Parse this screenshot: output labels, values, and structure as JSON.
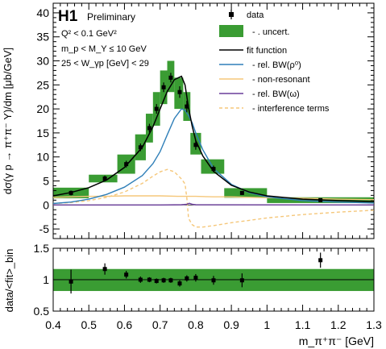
{
  "chart_data": [
    {
      "type": "line",
      "experiment_label": "H1",
      "status_label": "Preliminary",
      "cuts": [
        "Q² < 0.1 GeV²",
        "m_p < M_Y ≤ 10 GeV",
        "25 < W_γp [GeV] < 29"
      ],
      "ylabel": "dσ(γ p → π⁺π⁻ Y)/dm [μb/GeV]",
      "xlim": [
        0.4,
        1.3
      ],
      "ylim": [
        -7,
        42
      ],
      "x_ticks": [
        0.4,
        0.5,
        0.6,
        0.7,
        0.8,
        0.9,
        1.0,
        1.1,
        1.2,
        1.3
      ],
      "y_ticks": [
        -5,
        0,
        5,
        10,
        15,
        20,
        25,
        30,
        35,
        40
      ],
      "legend": {
        "placement": "top-right",
        "entries": [
          "data",
          "- . uncert.",
          "fit function",
          "- rel. BW(ρ⁰)",
          "- non-resonant",
          "- rel. BW(ω)",
          "- interference terms"
        ]
      },
      "colors": {
        "data": "#000000",
        "uncert": "#3a9c33",
        "fit": "#000000",
        "bw_rho": "#2f7fb8",
        "non_resonant": "#f5c77a",
        "bw_omega": "#6a3d9a",
        "interference": "#f5c77a"
      },
      "data_points": [
        {
          "x": 0.45,
          "y": 2.5,
          "yerr": 0.5,
          "band_lo": 0.4,
          "band_hi": 0.5,
          "band": [
            1.4,
            3.6
          ]
        },
        {
          "x": 0.545,
          "y": 5.5,
          "yerr": 0.6,
          "band_lo": 0.5,
          "band_hi": 0.58,
          "band": [
            4.7,
            6.3
          ]
        },
        {
          "x": 0.605,
          "y": 8.5,
          "yerr": 0.7,
          "band_lo": 0.58,
          "band_hi": 0.63,
          "band": [
            6.5,
            10.5
          ]
        },
        {
          "x": 0.645,
          "y": 12.0,
          "yerr": 0.8,
          "band_lo": 0.63,
          "band_hi": 0.66,
          "band": [
            9.3,
            14.7
          ]
        },
        {
          "x": 0.67,
          "y": 16.0,
          "yerr": 0.9,
          "band_lo": 0.66,
          "band_hi": 0.68,
          "band": [
            13.0,
            19.0
          ]
        },
        {
          "x": 0.69,
          "y": 20.0,
          "yerr": 1.0,
          "band_lo": 0.68,
          "band_hi": 0.7,
          "band": [
            16.5,
            23.5
          ]
        },
        {
          "x": 0.71,
          "y": 24.5,
          "yerr": 1.0,
          "band_lo": 0.7,
          "band_hi": 0.72,
          "band": [
            21.0,
            28.0
          ]
        },
        {
          "x": 0.73,
          "y": 26.5,
          "yerr": 1.0,
          "band_lo": 0.72,
          "band_hi": 0.74,
          "band": [
            23.5,
            30.0
          ]
        },
        {
          "x": 0.755,
          "y": 23.5,
          "yerr": 1.2,
          "band_lo": 0.74,
          "band_hi": 0.765,
          "band": [
            20.0,
            26.5
          ]
        },
        {
          "x": 0.775,
          "y": 20.5,
          "yerr": 1.2,
          "band_lo": 0.765,
          "band_hi": 0.785,
          "band": [
            17.5,
            23.5
          ]
        },
        {
          "x": 0.8,
          "y": 12.5,
          "yerr": 1.0,
          "band_lo": 0.785,
          "band_hi": 0.815,
          "band": [
            10.5,
            15.0
          ]
        },
        {
          "x": 0.85,
          "y": 7.5,
          "yerr": 0.7,
          "band_lo": 0.815,
          "band_hi": 0.88,
          "band": [
            6.5,
            9.5
          ]
        },
        {
          "x": 0.93,
          "y": 2.5,
          "yerr": 0.4,
          "band_lo": 0.88,
          "band_hi": 1.0,
          "band": [
            1.5,
            3.5
          ]
        },
        {
          "x": 1.15,
          "y": 1.0,
          "yerr": 0.3,
          "band_lo": 1.0,
          "band_hi": 1.3,
          "band": [
            0.4,
            1.6
          ]
        }
      ],
      "fit_function": {
        "x": [
          0.4,
          0.45,
          0.5,
          0.55,
          0.6,
          0.65,
          0.68,
          0.7,
          0.72,
          0.74,
          0.76,
          0.77,
          0.78,
          0.79,
          0.8,
          0.82,
          0.85,
          0.9,
          0.95,
          1.0,
          1.1,
          1.2,
          1.3
        ],
        "y": [
          1.9,
          2.6,
          3.6,
          5.2,
          7.8,
          12.0,
          16.3,
          20.0,
          23.6,
          26.1,
          26.8,
          25.0,
          20.2,
          16.4,
          13.4,
          10.2,
          7.0,
          4.1,
          2.7,
          1.9,
          1.2,
          0.9,
          0.7
        ]
      },
      "bw_rho": {
        "x": [
          0.4,
          0.45,
          0.5,
          0.55,
          0.6,
          0.65,
          0.68,
          0.7,
          0.72,
          0.74,
          0.76,
          0.77,
          0.78,
          0.79,
          0.8,
          0.82,
          0.85,
          0.9,
          0.95,
          1.0,
          1.1,
          1.2,
          1.3
        ],
        "y": [
          0.3,
          0.6,
          1.2,
          2.2,
          3.7,
          6.1,
          8.6,
          11.1,
          14.6,
          18.0,
          20.0,
          19.7,
          18.6,
          17.1,
          15.0,
          11.5,
          7.6,
          4.3,
          2.6,
          1.7,
          0.9,
          0.6,
          0.4
        ]
      },
      "non_resonant": {
        "x": [
          0.4,
          0.45,
          0.5,
          0.55,
          0.6,
          0.65,
          0.7,
          0.75,
          0.8,
          0.85,
          0.9,
          0.95,
          1.0,
          1.1,
          1.2,
          1.3
        ],
        "y": [
          1.6,
          1.7,
          1.8,
          1.8,
          1.9,
          1.9,
          1.9,
          1.8,
          1.8,
          1.7,
          1.7,
          1.6,
          1.5,
          1.4,
          1.2,
          1.1
        ]
      },
      "bw_omega": {
        "x": [
          0.4,
          0.7,
          0.76,
          0.775,
          0.782,
          0.79,
          0.8,
          1.3
        ],
        "y": [
          0.0,
          0.0,
          0.05,
          0.15,
          0.35,
          0.15,
          0.05,
          0.0
        ]
      },
      "interference": {
        "x": [
          0.4,
          0.45,
          0.5,
          0.55,
          0.6,
          0.65,
          0.68,
          0.7,
          0.72,
          0.74,
          0.76,
          0.77,
          0.775,
          0.78,
          0.79,
          0.8,
          0.82,
          0.85,
          0.9,
          0.95,
          1.0,
          1.1,
          1.2,
          1.3
        ],
        "y": [
          0.3,
          0.5,
          0.9,
          1.6,
          2.7,
          4.5,
          6.0,
          6.9,
          7.4,
          6.9,
          5.4,
          4.4,
          1.5,
          -2.8,
          -4.1,
          -4.6,
          -4.6,
          -4.3,
          -3.7,
          -3.2,
          -2.7,
          -2.0,
          -1.5,
          -1.1
        ]
      }
    },
    {
      "type": "scatter",
      "xlabel": "m_π⁺π⁻ [GeV]",
      "ylabel": "data/<fit>_bin",
      "xlim": [
        0.4,
        1.3
      ],
      "ylim": [
        0.5,
        1.5
      ],
      "x_ticks": [
        0.4,
        0.5,
        0.6,
        0.7,
        0.8,
        0.9,
        1.0,
        1.1,
        1.2,
        1.3
      ],
      "y_ticks": [
        0.5,
        1.0,
        1.5
      ],
      "reference_line": 1.0,
      "band": {
        "lo": 0.82,
        "hi": 1.17
      },
      "points": [
        {
          "x": 0.45,
          "y": 0.97,
          "yerr": 0.19
        },
        {
          "x": 0.545,
          "y": 1.17,
          "yerr": 0.09
        },
        {
          "x": 0.605,
          "y": 1.08,
          "yerr": 0.06
        },
        {
          "x": 0.645,
          "y": 1.0,
          "yerr": 0.05
        },
        {
          "x": 0.67,
          "y": 1.0,
          "yerr": 0.04
        },
        {
          "x": 0.69,
          "y": 0.98,
          "yerr": 0.04
        },
        {
          "x": 0.71,
          "y": 0.99,
          "yerr": 0.04
        },
        {
          "x": 0.73,
          "y": 0.99,
          "yerr": 0.04
        },
        {
          "x": 0.755,
          "y": 0.94,
          "yerr": 0.05
        },
        {
          "x": 0.775,
          "y": 1.02,
          "yerr": 0.05
        },
        {
          "x": 0.8,
          "y": 1.03,
          "yerr": 0.06
        },
        {
          "x": 0.85,
          "y": 0.99,
          "yerr": 0.07
        },
        {
          "x": 0.93,
          "y": 0.99,
          "yerr": 0.11
        },
        {
          "x": 1.15,
          "y": 1.31,
          "yerr": 0.12
        }
      ]
    }
  ]
}
